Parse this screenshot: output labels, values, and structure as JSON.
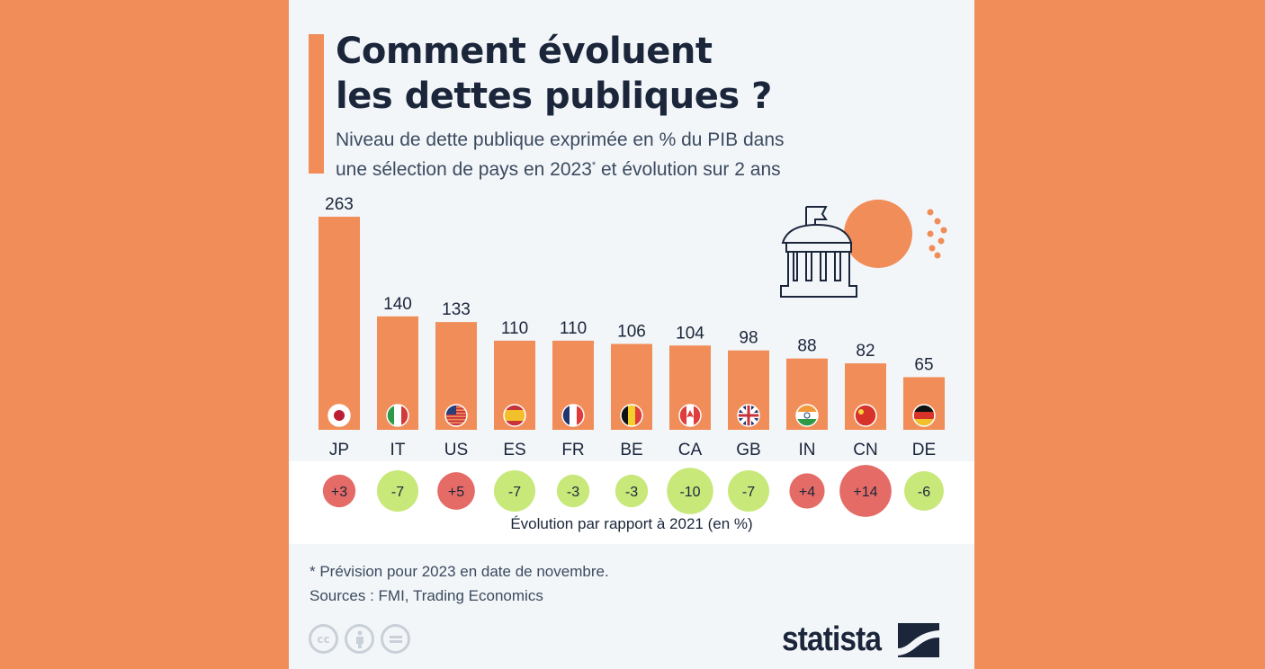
{
  "header": {
    "title_line1": "Comment évoluent",
    "title_line2": "les dettes publiques ?",
    "subtitle_line1": "Niveau de dette publique exprimée en % du PIB dans",
    "subtitle_line2_a": "une sélection de pays en 2023",
    "subtitle_line2_sup": "*",
    "subtitle_line2_b": " et évolution sur 2 ans"
  },
  "colors": {
    "background": "#f08d58",
    "card": "#f3f6f9",
    "bar": "#f08d58",
    "text_dark": "#1b263b",
    "increase": "#e56b66",
    "decrease": "#c8e87a"
  },
  "chart_data": {
    "type": "bar",
    "title": "Comment évoluent les dettes publiques ?",
    "ylabel": "Dette publique en % du PIB (2023)",
    "categories": [
      "JP",
      "IT",
      "US",
      "ES",
      "FR",
      "BE",
      "CA",
      "GB",
      "IN",
      "CN",
      "DE"
    ],
    "values": [
      263,
      140,
      133,
      110,
      110,
      106,
      104,
      98,
      88,
      82,
      65
    ],
    "ylim": [
      0,
      263
    ],
    "grid": false,
    "flags": [
      "japan-flag",
      "italy-flag",
      "usa-flag",
      "spain-flag",
      "france-flag",
      "belgium-flag",
      "canada-flag",
      "uk-flag",
      "india-flag",
      "china-flag",
      "germany-flag"
    ],
    "change_series": {
      "name": "Évolution par rapport à 2021 (en %)",
      "labels": [
        "+3",
        "-7",
        "+5",
        "-7",
        "-3",
        "-3",
        "-10",
        "-7",
        "+4",
        "+14",
        "-6"
      ],
      "values": [
        3,
        -7,
        5,
        -7,
        -3,
        -3,
        -10,
        -7,
        4,
        14,
        -6
      ]
    }
  },
  "band": {
    "caption": "Évolution par rapport à 2021 (en %)"
  },
  "footer": {
    "note": "* Prévision pour 2023 en date de novembre.",
    "sources": "Sources : FMI, Trading Economics",
    "cc_labels": [
      "cc",
      "",
      "="
    ],
    "logo": "statista"
  }
}
